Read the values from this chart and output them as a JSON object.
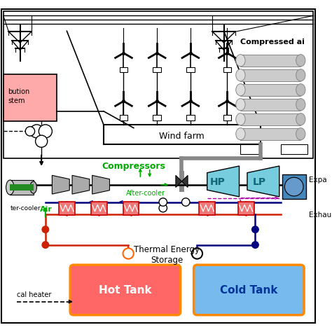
{
  "background_color": "#ffffff",
  "wind_farm_label": "Wind farm",
  "compressors_label": "Compressors",
  "after_cooler_label": "After-cooler",
  "air_label": "Air",
  "hp_label": "HP",
  "lp_label": "LP",
  "hot_tank_label": "Hot Tank",
  "cold_tank_label": "Cold Tank",
  "thermal_storage_label": "Thermal Energy\nStorage",
  "compressed_air_label": "Compressed ai",
  "expander_label": "Expa",
  "exhaust_label": "Exhau",
  "distribution_label1": "bution",
  "distribution_label2": "stem",
  "heater_label": "al heater",
  "green_color": "#00AA00",
  "red_pipe_color": "#CC2200",
  "blue_pipe_color": "#000080",
  "purple_color": "#AA00AA",
  "orange_border": "#FF8800",
  "pipe_gray": "#888888",
  "hot_tank_fill": "#FF6666",
  "cold_tank_fill": "#77BBEE",
  "hp_lp_fill": "#77CCDD",
  "compressor_fill": "#AAAAAA",
  "dist_fill": "#FFAAAA"
}
